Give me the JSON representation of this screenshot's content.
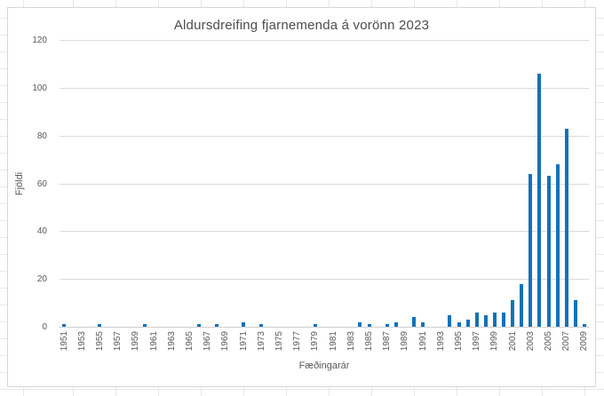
{
  "chart_data": {
    "type": "bar",
    "title": "Aldursdreifing fjarnemenda á vorönn 2023",
    "xlabel": "Fæðingarár",
    "ylabel": "Fjöldi",
    "ylim": [
      0,
      120
    ],
    "yticks": [
      0,
      20,
      40,
      60,
      80,
      100,
      120
    ],
    "grid": true,
    "legend": false,
    "bar_color": "#1272b9",
    "labeled_years_note": "x tick labels shown for odd years only, rotated vertical",
    "categories": [
      1951,
      1952,
      1953,
      1954,
      1955,
      1956,
      1957,
      1958,
      1959,
      1960,
      1961,
      1962,
      1963,
      1964,
      1965,
      1966,
      1967,
      1968,
      1969,
      1970,
      1971,
      1972,
      1973,
      1974,
      1975,
      1976,
      1977,
      1978,
      1979,
      1980,
      1981,
      1982,
      1983,
      1984,
      1985,
      1986,
      1987,
      1988,
      1989,
      1990,
      1991,
      1992,
      1993,
      1994,
      1995,
      1996,
      1997,
      1998,
      1999,
      2000,
      2001,
      2002,
      2003,
      2004,
      2005,
      2006,
      2007,
      2008,
      2009
    ],
    "values": [
      1,
      0,
      0,
      0,
      1,
      0,
      0,
      0,
      0,
      1,
      0,
      0,
      0,
      0,
      0,
      1,
      0,
      1,
      0,
      0,
      2,
      0,
      1,
      0,
      0,
      0,
      0,
      0,
      1,
      0,
      0,
      0,
      0,
      2,
      1,
      0,
      1,
      2,
      0,
      4,
      2,
      0,
      0,
      5,
      2,
      3,
      6,
      5,
      6,
      6,
      11,
      18,
      64,
      106,
      63,
      68,
      83,
      11,
      1
    ]
  },
  "colors": {
    "bar": "#1272b9",
    "gridline": "#dadada",
    "axis_text": "#595959",
    "title_text": "#4d4d4d",
    "frame_border": "#d7d7d7"
  }
}
